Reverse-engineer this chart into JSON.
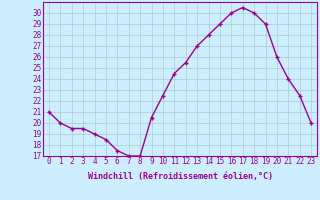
{
  "x": [
    0,
    1,
    2,
    3,
    4,
    5,
    6,
    7,
    8,
    9,
    10,
    11,
    12,
    13,
    14,
    15,
    16,
    17,
    18,
    19,
    20,
    21,
    22,
    23
  ],
  "y": [
    21,
    20,
    19.5,
    19.5,
    19,
    18.5,
    17.5,
    17,
    17,
    20.5,
    22.5,
    24.5,
    25.5,
    27,
    28,
    29,
    30,
    30.5,
    30,
    29,
    26,
    24,
    22.5,
    20
  ],
  "line_color": "#990099",
  "marker": "+",
  "marker_size": 3,
  "bg_color": "#cceeff",
  "grid_color": "#aacccc",
  "xlabel": "Windchill (Refroidissement éolien,°C)",
  "xlabel_fontsize": 6.0,
  "tick_fontsize": 5.5,
  "ylim": [
    17,
    31
  ],
  "yticks": [
    17,
    18,
    19,
    20,
    21,
    22,
    23,
    24,
    25,
    26,
    27,
    28,
    29,
    30
  ],
  "xticks": [
    0,
    1,
    2,
    3,
    4,
    5,
    6,
    7,
    8,
    9,
    10,
    11,
    12,
    13,
    14,
    15,
    16,
    17,
    18,
    19,
    20,
    21,
    22,
    23
  ],
  "line_width": 1.0,
  "spine_color": "#990099"
}
